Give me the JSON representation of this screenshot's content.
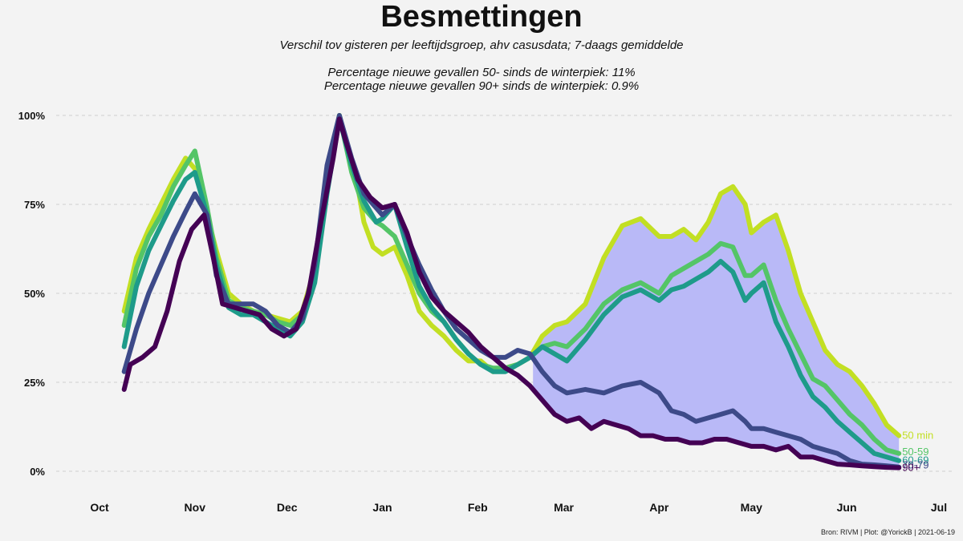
{
  "title": "Besmettingen",
  "subtitle": "Verschil tov gisteren per leeftijdsgroep, ahv casusdata; 7-daags gemiddelde",
  "notes": [
    "Percentage nieuwe gevallen 50- sinds de winterpiek: 11%",
    "Percentage nieuwe gevallen 90+ sinds de winterpiek: 0.9%"
  ],
  "caption": "Bron: RIVM | Plot: @YorickB  |  2021-06-19",
  "chart_data": {
    "type": "line",
    "x_unit": "days since 2020-10-01",
    "xlim": [
      0,
      273
    ],
    "ylim": [
      -10,
      100
    ],
    "ylabel": "",
    "xlabel": "",
    "yticks": [
      0,
      25,
      50,
      75,
      100
    ],
    "ytick_labels": [
      "0%",
      "25%",
      "50%",
      "75%",
      "100%"
    ],
    "xticks": [
      0,
      31,
      61,
      92,
      123,
      151,
      182,
      212,
      243,
      273
    ],
    "xtick_labels": [
      "Oct",
      "Nov",
      "Dec",
      "Jan",
      "Feb",
      "Mar",
      "Apr",
      "May",
      "Jun",
      "Jul"
    ],
    "grid": "horizontal dashed",
    "shaded_band": {
      "between": [
        "50 min",
        "90+"
      ],
      "from_x": 141,
      "color": "#b9b9f7"
    },
    "series": [
      {
        "name": "50 min",
        "label": "50 min",
        "color": "#c2df23",
        "x": [
          8,
          12,
          16,
          20,
          24,
          28,
          31,
          35,
          38,
          42,
          46,
          50,
          54,
          58,
          62,
          66,
          70,
          74,
          78,
          84,
          86,
          89,
          92,
          96,
          100,
          104,
          108,
          112,
          116,
          120,
          124,
          128,
          132,
          136,
          140,
          144,
          148,
          152,
          158,
          164,
          170,
          176,
          182,
          186,
          190,
          194,
          198,
          202,
          206,
          210,
          212,
          216,
          220,
          224,
          228,
          232,
          236,
          240,
          244,
          248,
          252,
          256,
          260
        ],
        "y": [
          45,
          60,
          68,
          75,
          82,
          88,
          85,
          72,
          62,
          50,
          47,
          45,
          44,
          43,
          42,
          45,
          57,
          82,
          100,
          80,
          70,
          63,
          61,
          63,
          55,
          45,
          41,
          38,
          34,
          31,
          31,
          28,
          29,
          30,
          32,
          38,
          41,
          42,
          47,
          60,
          69,
          71,
          66,
          66,
          68,
          65,
          70,
          78,
          80,
          75,
          67,
          70,
          72,
          62,
          50,
          42,
          34,
          30,
          28,
          24,
          19,
          13,
          10
        ]
      },
      {
        "name": "50-59",
        "label": "50-59",
        "color": "#54c567",
        "x": [
          8,
          12,
          16,
          20,
          24,
          28,
          31,
          35,
          38,
          42,
          46,
          50,
          54,
          58,
          62,
          66,
          70,
          74,
          78,
          82,
          86,
          90,
          92,
          96,
          100,
          104,
          108,
          112,
          116,
          120,
          124,
          128,
          132,
          136,
          140,
          144,
          148,
          152,
          158,
          164,
          170,
          176,
          182,
          186,
          190,
          194,
          198,
          202,
          206,
          210,
          212,
          216,
          220,
          224,
          228,
          232,
          236,
          240,
          244,
          248,
          252,
          256,
          260
        ],
        "y": [
          41,
          57,
          66,
          72,
          80,
          86,
          90,
          74,
          60,
          48,
          46,
          45,
          44,
          42,
          41,
          44,
          55,
          80,
          100,
          84,
          74,
          70,
          69,
          66,
          58,
          50,
          45,
          42,
          37,
          33,
          30,
          29,
          29,
          30,
          32,
          35,
          36,
          35,
          40,
          47,
          51,
          53,
          50,
          55,
          57,
          59,
          61,
          64,
          63,
          55,
          55,
          58,
          48,
          40,
          33,
          26,
          24,
          20,
          16,
          13,
          9,
          6,
          5
        ]
      },
      {
        "name": "60-69",
        "label": "60-69",
        "color": "#1e9b8a",
        "x": [
          8,
          12,
          16,
          20,
          24,
          28,
          31,
          35,
          38,
          42,
          46,
          50,
          54,
          58,
          62,
          66,
          70,
          74,
          78,
          82,
          86,
          90,
          92,
          96,
          100,
          104,
          108,
          112,
          116,
          120,
          124,
          128,
          132,
          136,
          140,
          144,
          148,
          152,
          158,
          164,
          170,
          176,
          182,
          186,
          190,
          194,
          198,
          202,
          206,
          210,
          212,
          216,
          220,
          224,
          228,
          232,
          236,
          240,
          244,
          248,
          252,
          256,
          260
        ],
        "y": [
          35,
          52,
          62,
          69,
          76,
          82,
          84,
          72,
          58,
          46,
          44,
          44,
          42,
          40,
          38,
          42,
          53,
          78,
          99,
          86,
          76,
          70,
          71,
          75,
          63,
          52,
          46,
          42,
          37,
          33,
          30,
          28,
          28,
          30,
          32,
          35,
          33,
          31,
          37,
          44,
          49,
          51,
          48,
          51,
          52,
          54,
          56,
          59,
          56,
          48,
          50,
          53,
          42,
          35,
          27,
          21,
          18,
          14,
          11,
          8,
          5,
          4,
          3
        ]
      },
      {
        "name": "70-79",
        "label": "70-79",
        "color": "#3d4a89",
        "x": [
          8,
          12,
          16,
          20,
          24,
          28,
          31,
          35,
          38,
          42,
          46,
          50,
          54,
          58,
          62,
          66,
          70,
          74,
          78,
          82,
          86,
          90,
          92,
          96,
          100,
          104,
          108,
          112,
          116,
          120,
          124,
          128,
          132,
          136,
          140,
          144,
          148,
          152,
          158,
          164,
          170,
          176,
          182,
          186,
          190,
          194,
          198,
          202,
          206,
          210,
          212,
          216,
          220,
          224,
          228,
          232,
          236,
          240,
          244,
          248,
          252,
          256,
          260
        ],
        "y": [
          28,
          40,
          50,
          58,
          66,
          73,
          78,
          72,
          55,
          47,
          47,
          47,
          45,
          41,
          39,
          43,
          58,
          86,
          100,
          88,
          78,
          74,
          72,
          75,
          66,
          58,
          51,
          45,
          40,
          37,
          34,
          32,
          32,
          34,
          33,
          28,
          24,
          22,
          23,
          22,
          24,
          25,
          22,
          17,
          16,
          14,
          15,
          16,
          17,
          14,
          12,
          12,
          11,
          10,
          9,
          7,
          6,
          5,
          3,
          2,
          1.8,
          1.5,
          1.2
        ]
      },
      {
        "name": "90+",
        "label": "90+",
        "color": "#440154",
        "x": [
          8,
          10,
          14,
          18,
          22,
          26,
          30,
          34,
          37,
          40,
          44,
          48,
          52,
          56,
          60,
          64,
          68,
          72,
          76,
          78,
          80,
          84,
          88,
          92,
          96,
          100,
          104,
          108,
          112,
          116,
          120,
          124,
          128,
          132,
          136,
          140,
          144,
          148,
          152,
          156,
          160,
          164,
          168,
          172,
          176,
          180,
          184,
          188,
          192,
          196,
          200,
          204,
          208,
          212,
          216,
          220,
          224,
          228,
          232,
          236,
          240,
          244,
          248,
          252,
          256,
          260
        ],
        "y": [
          23,
          30,
          32,
          35,
          45,
          59,
          68,
          72,
          60,
          47,
          46,
          45,
          44,
          40,
          38,
          40,
          50,
          70,
          88,
          99,
          93,
          82,
          77,
          74,
          75,
          67,
          56,
          49,
          45,
          42,
          39,
          35,
          32,
          29,
          27,
          24,
          20,
          16,
          14,
          15,
          12,
          14,
          13,
          12,
          10,
          10,
          9,
          9,
          8,
          8,
          9,
          9,
          8,
          7,
          7,
          6,
          7,
          4,
          4,
          3,
          2,
          1.8,
          1.5,
          1.3,
          1.1,
          1.0
        ]
      }
    ]
  }
}
